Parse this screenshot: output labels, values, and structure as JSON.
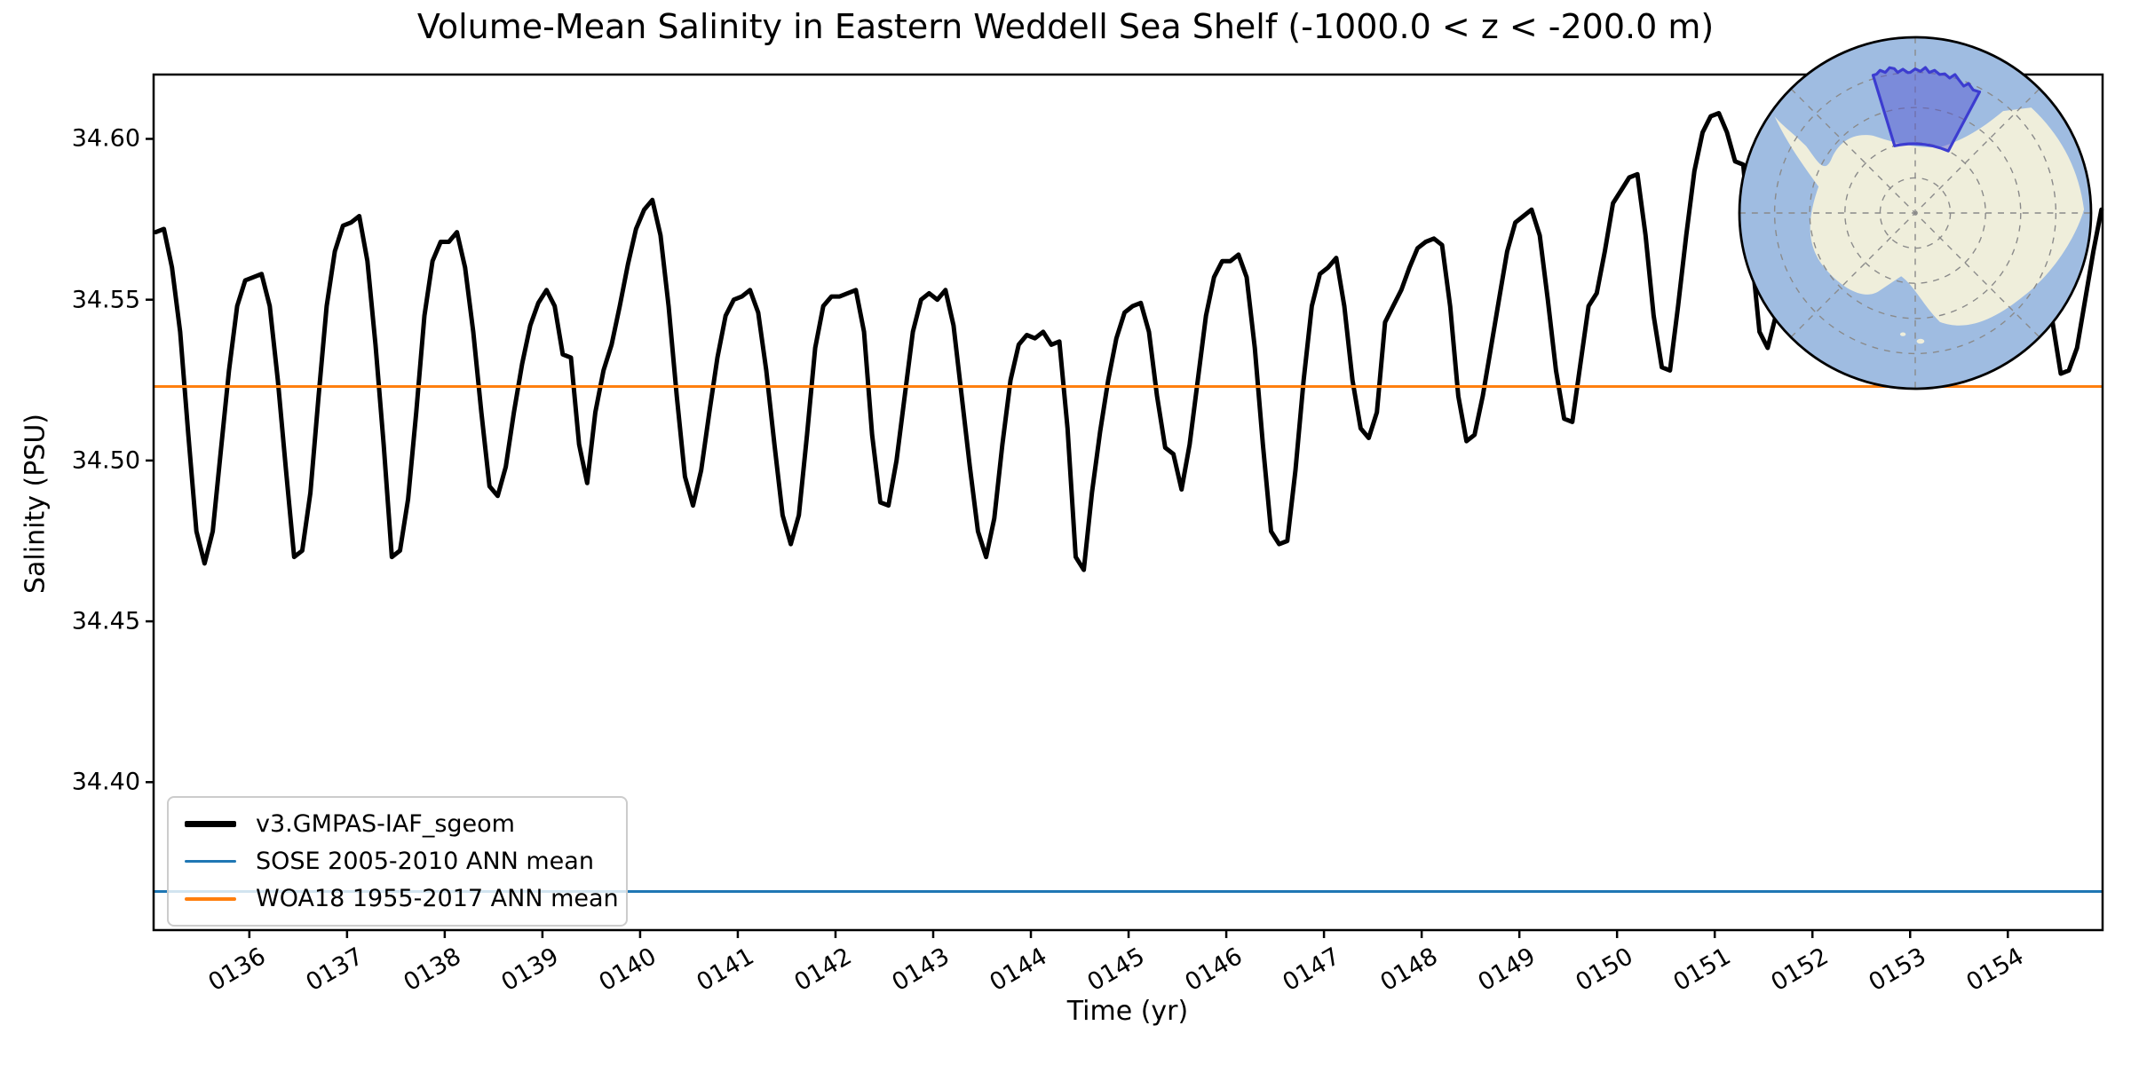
{
  "figure": {
    "title": "Volume-Mean Salinity in Eastern Weddell Sea Shelf (-1000.0 < z < -200.0 m)",
    "xlabel": "Time (yr)",
    "ylabel": "Salinity (PSU)"
  },
  "legend": {
    "entries": [
      {
        "label": "v3.GMPAS-IAF_sgeom",
        "color": "#000000",
        "thickness": 7
      },
      {
        "label": "SOSE 2005-2010 ANN mean",
        "color": "#1f77b4",
        "thickness": 3.5
      },
      {
        "label": "WOA18 1955-2017 ANN mean",
        "color": "#ff7f0e",
        "thickness": 3.5
      }
    ]
  },
  "chart_data": {
    "type": "line",
    "title": "Volume-Mean Salinity in Eastern Weddell Sea Shelf (-1000.0 < z < -200.0 m)",
    "xlabel": "Time (yr)",
    "ylabel": "Salinity (PSU)",
    "xlim": [
      135.02,
      154.97
    ],
    "ylim": [
      34.354,
      34.62
    ],
    "grid": false,
    "legend_position": "lower left",
    "x_ticks": {
      "labels": [
        "0136",
        "0137",
        "0138",
        "0139",
        "0140",
        "0141",
        "0142",
        "0143",
        "0144",
        "0145",
        "0146",
        "0147",
        "0148",
        "0149",
        "0150",
        "0151",
        "0152",
        "0153",
        "0154"
      ],
      "values": [
        136,
        137,
        138,
        139,
        140,
        141,
        142,
        143,
        144,
        145,
        146,
        147,
        148,
        149,
        150,
        151,
        152,
        153,
        154
      ]
    },
    "y_ticks": {
      "labels": [
        "34.60",
        "34.55",
        "34.50",
        "34.45",
        "34.40"
      ],
      "values": [
        34.6,
        34.55,
        34.5,
        34.45,
        34.4
      ]
    },
    "series": [
      {
        "name": "v3.GMPAS-IAF_sgeom",
        "color": "#000000",
        "line_width": 5,
        "x_start": 135.0417,
        "x_step": 0.0833333,
        "values": [
          34.571,
          34.572,
          34.56,
          34.54,
          34.508,
          34.478,
          34.468,
          34.478,
          34.503,
          34.528,
          34.548,
          34.556,
          34.557,
          34.558,
          34.548,
          34.525,
          34.497,
          34.47,
          34.472,
          34.49,
          34.52,
          34.548,
          34.565,
          34.573,
          34.574,
          34.576,
          34.562,
          34.536,
          34.505,
          34.47,
          34.472,
          34.488,
          34.515,
          34.545,
          34.562,
          34.568,
          34.568,
          34.571,
          34.56,
          34.54,
          34.515,
          34.492,
          34.489,
          34.498,
          34.515,
          34.53,
          34.542,
          34.549,
          34.553,
          34.548,
          34.533,
          34.532,
          34.505,
          34.493,
          34.515,
          34.528,
          34.536,
          34.548,
          34.561,
          34.572,
          34.578,
          34.581,
          34.57,
          34.548,
          34.52,
          34.495,
          34.486,
          34.497,
          34.515,
          34.532,
          34.545,
          34.55,
          34.551,
          34.553,
          34.546,
          34.528,
          34.505,
          34.483,
          34.474,
          34.483,
          34.508,
          34.535,
          34.548,
          34.551,
          34.551,
          34.552,
          34.553,
          34.54,
          34.508,
          34.487,
          34.486,
          34.5,
          34.52,
          34.54,
          34.55,
          34.552,
          34.55,
          34.553,
          34.542,
          34.52,
          34.498,
          34.478,
          34.47,
          34.482,
          34.505,
          34.525,
          34.536,
          34.539,
          34.538,
          34.54,
          34.536,
          34.537,
          34.51,
          34.47,
          34.466,
          34.49,
          34.509,
          34.525,
          34.538,
          34.546,
          34.548,
          34.549,
          34.54,
          34.52,
          34.504,
          34.502,
          34.491,
          34.505,
          34.525,
          34.545,
          34.557,
          34.562,
          34.562,
          34.564,
          34.557,
          34.535,
          34.505,
          34.478,
          34.474,
          34.475,
          34.497,
          34.525,
          34.548,
          34.558,
          34.56,
          34.563,
          34.548,
          34.525,
          34.51,
          34.507,
          34.515,
          34.543,
          34.548,
          34.553,
          34.56,
          34.566,
          34.568,
          34.569,
          34.567,
          34.548,
          34.52,
          34.506,
          34.508,
          34.52,
          34.535,
          34.55,
          34.565,
          34.574,
          34.576,
          34.578,
          34.57,
          34.55,
          34.528,
          34.513,
          34.512,
          34.53,
          34.548,
          34.552,
          34.565,
          34.58,
          34.584,
          34.588,
          34.589,
          34.57,
          34.545,
          34.529,
          34.528,
          34.548,
          34.57,
          34.59,
          34.602,
          34.607,
          34.608,
          34.602,
          34.593,
          34.592,
          34.565,
          34.54,
          34.535,
          34.545,
          34.56,
          34.58,
          34.595,
          34.605,
          34.61,
          34.612,
          34.6,
          34.575,
          34.55,
          34.535,
          34.532,
          34.545,
          34.562,
          34.58,
          34.596,
          34.606,
          34.612,
          34.614,
          34.602,
          34.578,
          34.552,
          34.536,
          34.533,
          34.546,
          34.564,
          34.584,
          34.6,
          34.61,
          34.615,
          34.616,
          34.605,
          34.58,
          34.555,
          34.543,
          34.527,
          34.528,
          34.535,
          34.55,
          34.565,
          34.578
        ]
      },
      {
        "name": "SOSE 2005-2010 ANN mean",
        "type": "hline",
        "value": 34.366,
        "color": "#1f77b4",
        "line_width": 3
      },
      {
        "name": "WOA18 1955-2017 ANN mean",
        "type": "hline",
        "value": 34.523,
        "color": "#ff7f0e",
        "line_width": 3
      }
    ]
  },
  "inset_map": {
    "description": "Antarctica south polar stereographic inset",
    "highlighted_region": "Eastern Weddell Sea Shelf",
    "ocean_color": "#9fbce1",
    "land_color": "#efeedb",
    "region_fill": "rgba(80,80,210,0.45)",
    "region_edge": "#3c3cd0",
    "graticule_color": "#8a8a8a",
    "edge_color": "#000000"
  }
}
